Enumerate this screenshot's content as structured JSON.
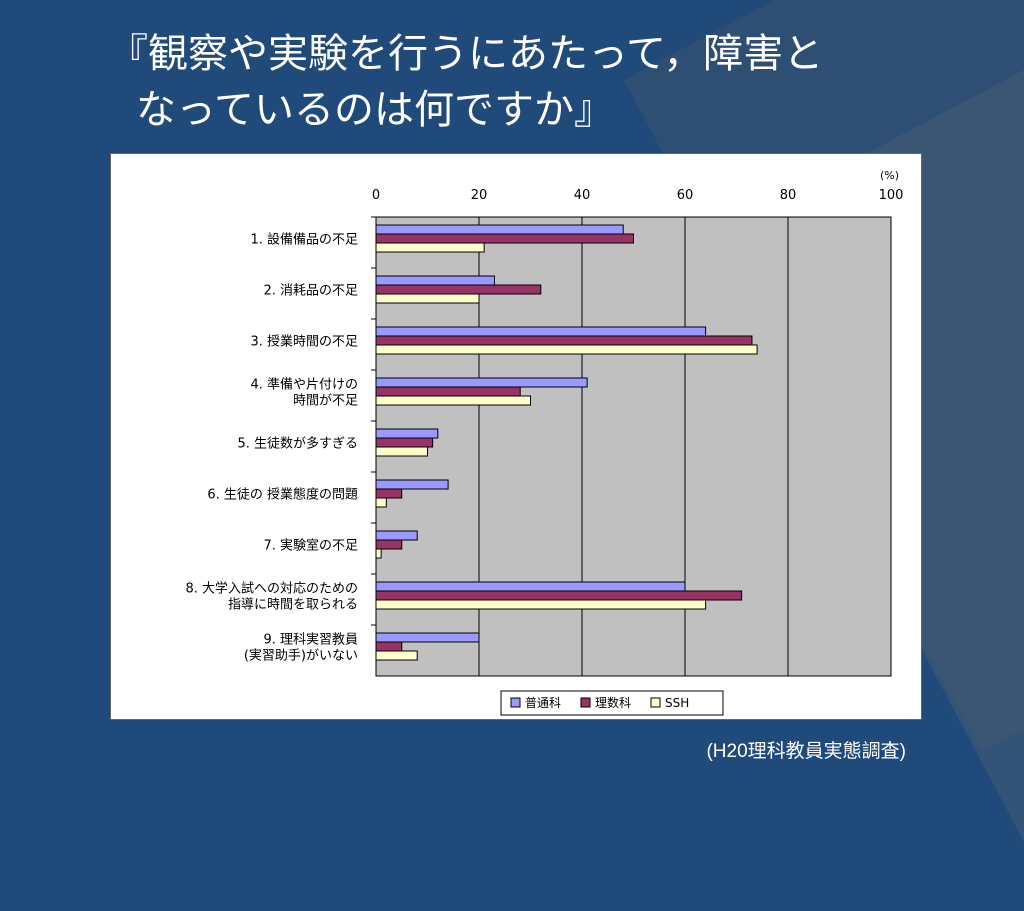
{
  "slide": {
    "title_line1": "『観察や実験を行うにあたって，障害と",
    "title_line2": "なっているのは何ですか』",
    "source": "(H20理科教員実態調査)"
  },
  "chart_data": {
    "type": "bar",
    "orientation": "horizontal",
    "unit_label": "(%)",
    "xlim": [
      0,
      100
    ],
    "xticks": [
      0,
      20,
      40,
      60,
      80,
      100
    ],
    "grid": true,
    "legend_position": "bottom",
    "categories": [
      [
        "1. 設備備品の不足"
      ],
      [
        "2. 消耗品の不足"
      ],
      [
        "3. 授業時間の不足"
      ],
      [
        "4. 準備や片付けの",
        "時間が不足"
      ],
      [
        "5. 生徒数が多すぎる"
      ],
      [
        "6. 生徒の 授業態度の問題"
      ],
      [
        "7. 実験室の不足"
      ],
      [
        "8. 大学入試への対応のための",
        "指導に時間を取られる"
      ],
      [
        "9. 理科実習教員",
        "(実習助手)がいない"
      ]
    ],
    "series": [
      {
        "name": "普通科",
        "color": "#9999ff",
        "values": [
          48,
          23,
          64,
          41,
          12,
          14,
          8,
          60,
          20
        ]
      },
      {
        "name": "理数科",
        "color": "#993366",
        "values": [
          50,
          32,
          73,
          28,
          11,
          5,
          5,
          71,
          5
        ]
      },
      {
        "name": "SSH",
        "color": "#ffffcc",
        "values": [
          21,
          20,
          74,
          30,
          10,
          2,
          1,
          64,
          8
        ]
      }
    ],
    "colors": {
      "plot_bg": "#c0c0c0",
      "bar_border": "#000000"
    }
  }
}
